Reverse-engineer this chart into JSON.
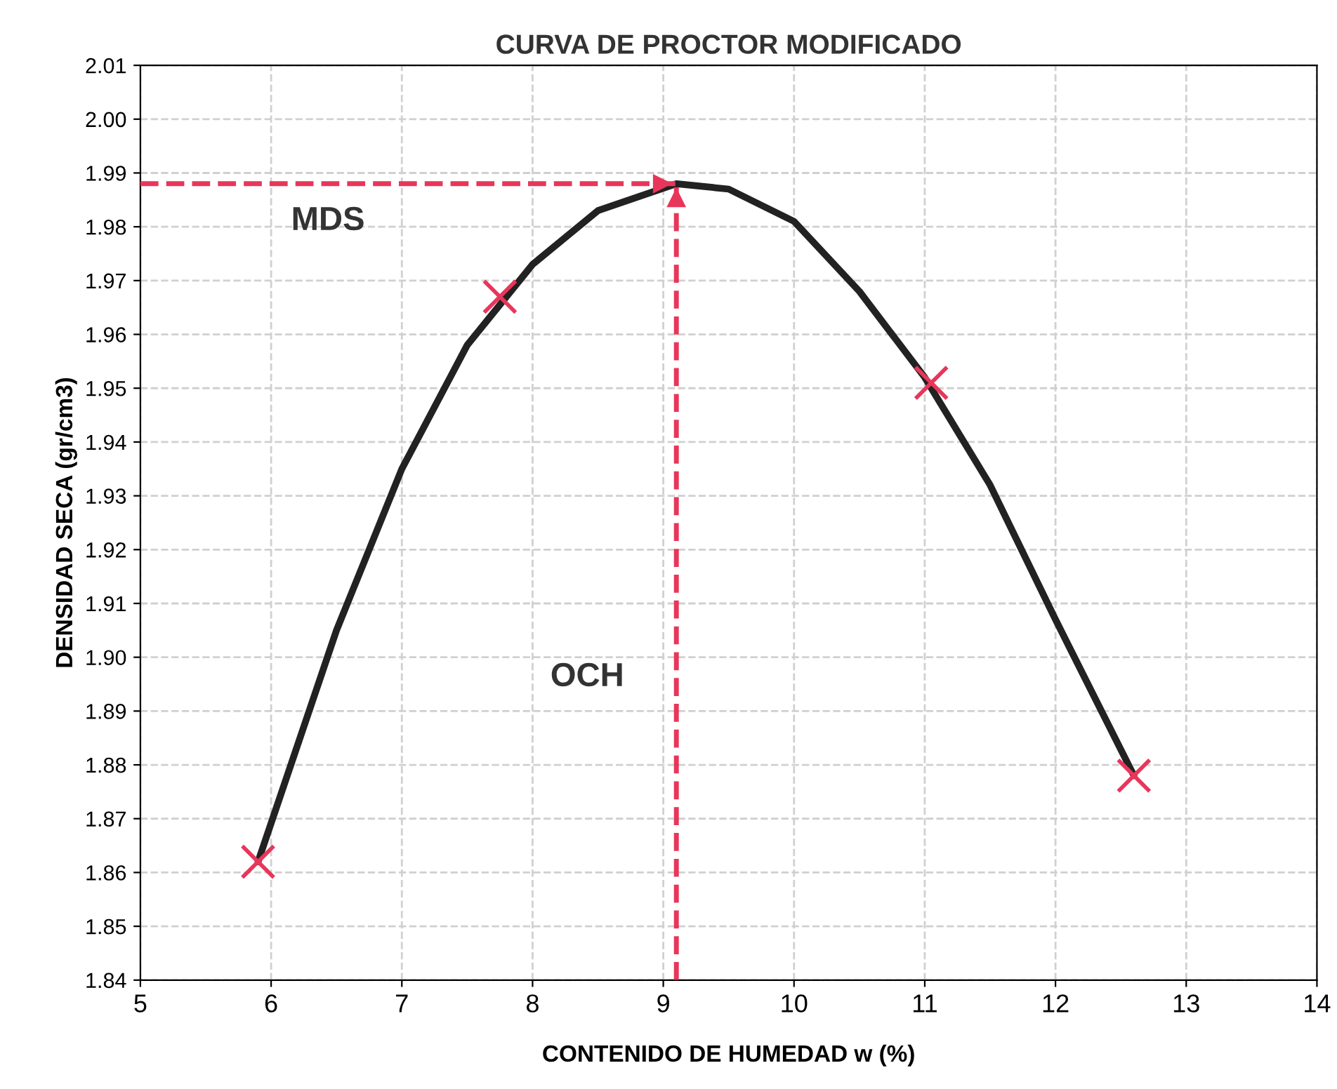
{
  "chart_data": {
    "type": "line",
    "title": "CURVA DE PROCTOR MODIFICADO",
    "xlabel": "CONTENIDO DE HUMEDAD w (%)",
    "ylabel": "DENSIDAD SECA (gr/cm3)",
    "xlim": [
      5,
      14
    ],
    "xticks": [
      5,
      6,
      7,
      8,
      9,
      10,
      11,
      12,
      13,
      14
    ],
    "ylim": [
      1.84,
      2.01
    ],
    "yticks": [
      {
        "value": 1.84,
        "label": "1.84"
      },
      {
        "value": 1.85,
        "label": "1.85"
      },
      {
        "value": 1.86,
        "label": "1.86"
      },
      {
        "value": 1.87,
        "label": "1.87"
      },
      {
        "value": 1.88,
        "label": "1.88"
      },
      {
        "value": 1.89,
        "label": "1.89"
      },
      {
        "value": 1.9,
        "label": "1.90"
      },
      {
        "value": 1.91,
        "label": "1.91"
      },
      {
        "value": 1.92,
        "label": "1.92"
      },
      {
        "value": 1.93,
        "label": "1.93"
      },
      {
        "value": 1.94,
        "label": "1.94"
      },
      {
        "value": 1.95,
        "label": "1.95"
      },
      {
        "value": 1.96,
        "label": "1.96"
      },
      {
        "value": 1.97,
        "label": "1.97"
      },
      {
        "value": 1.98,
        "label": "1.98"
      },
      {
        "value": 1.99,
        "label": "1.99"
      },
      {
        "value": 2.0,
        "label": "2.00"
      },
      {
        "value": 2.01,
        "label": "2.01"
      }
    ],
    "grid": true,
    "series": [
      {
        "color": "#222222",
        "marker": "none",
        "line_style": "solid",
        "x": [
          5.9,
          6.5,
          7.0,
          7.5,
          8.0,
          8.5,
          9.1,
          9.5,
          10.0,
          10.5,
          11.0,
          11.5,
          12.0,
          12.6
        ],
        "values": [
          1.862,
          1.905,
          1.935,
          1.958,
          1.973,
          1.983,
          1.988,
          1.987,
          1.981,
          1.968,
          1.952,
          1.932,
          1.907,
          1.878
        ]
      },
      {
        "type": "scatter",
        "color": "#e8365a",
        "marker": "cross",
        "x": [
          5.9,
          7.75,
          11.05,
          12.6
        ],
        "values": [
          1.862,
          1.967,
          1.951,
          1.878
        ]
      }
    ],
    "ref_lines": [
      {
        "axis": "y",
        "value": 1.988,
        "label": "MDS",
        "color": "#e8365a",
        "line_style": "dashed"
      },
      {
        "axis": "x",
        "value": 9.1,
        "label": "OCH",
        "color": "#e8365a",
        "line_style": "dashed"
      }
    ]
  }
}
